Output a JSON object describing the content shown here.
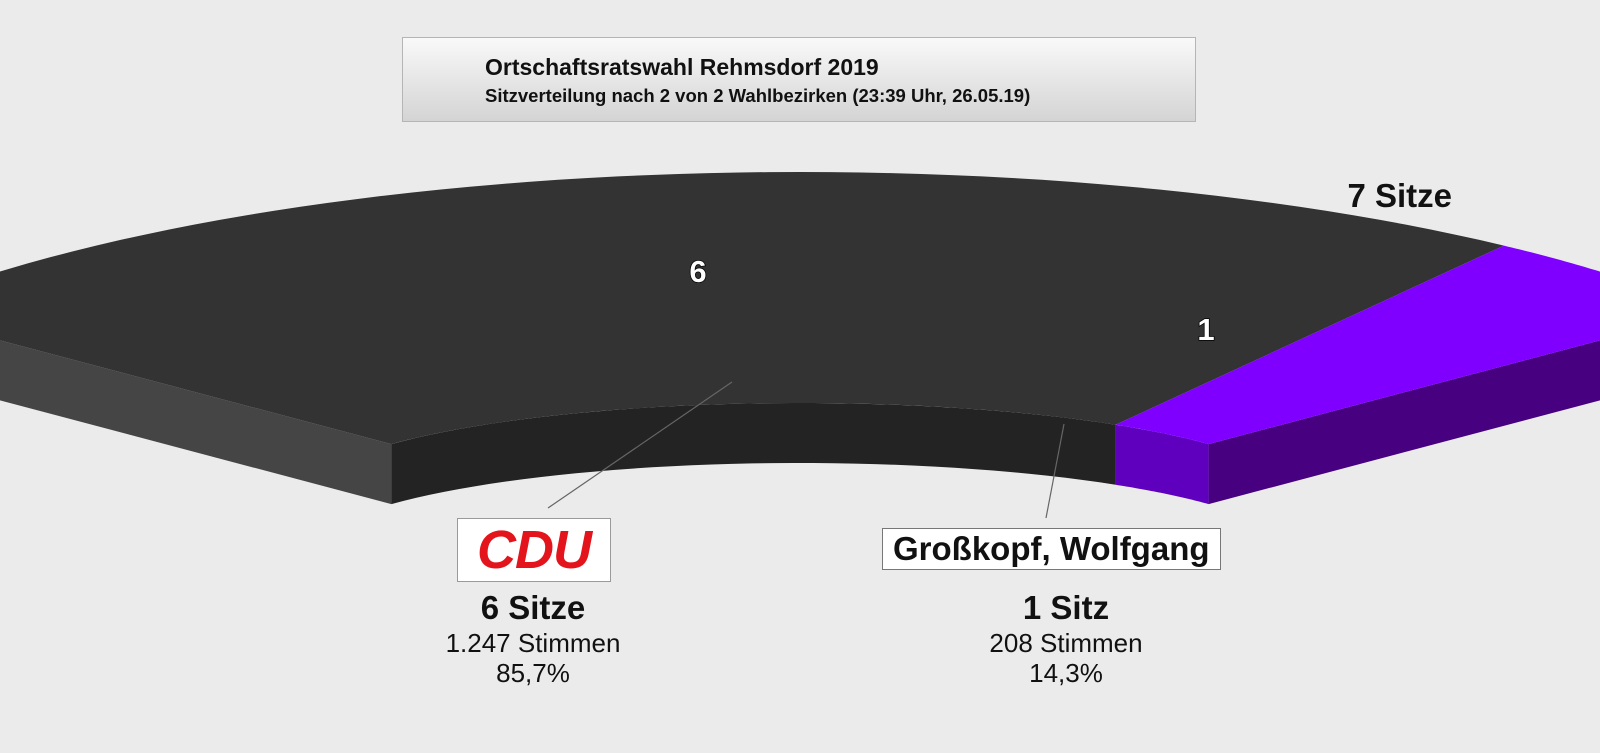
{
  "header": {
    "title": "Ortschaftsratswahl Rehmsdorf 2019",
    "subtitle": "Sitzverteilung nach 2 von 2 Wahlbezirken (23:39 Uhr, 26.05.19)"
  },
  "total_label": "7 Sitze",
  "parties": [
    {
      "name": "CDU",
      "seat_value": "6",
      "seats_label": "6 Sitze",
      "votes": "1.247 Stimmen",
      "percent": "85,7%"
    },
    {
      "name": "Großkopf, Wolfgang",
      "seat_value": "1",
      "seats_label": "1 Sitz",
      "votes": "208 Stimmen",
      "percent": "14,3%"
    }
  ],
  "chart_data": {
    "type": "pie",
    "variant": "3d-half-donut",
    "title": "Ortschaftsratswahl Rehmsdorf 2019",
    "subtitle": "Sitzverteilung nach 2 von 2 Wahlbezirken (23:39 Uhr, 26.05.19)",
    "total_seats": 7,
    "categories": [
      "CDU",
      "Großkopf, Wolfgang"
    ],
    "values": [
      6,
      1
    ],
    "votes": [
      1247,
      208
    ],
    "percentages": [
      85.7,
      14.3
    ],
    "colors": [
      "#333333",
      "#8000ff"
    ],
    "side_colors": [
      "#454545",
      "#47007f"
    ],
    "inner_colors": [
      "#232323",
      "#5e00bd"
    ]
  }
}
